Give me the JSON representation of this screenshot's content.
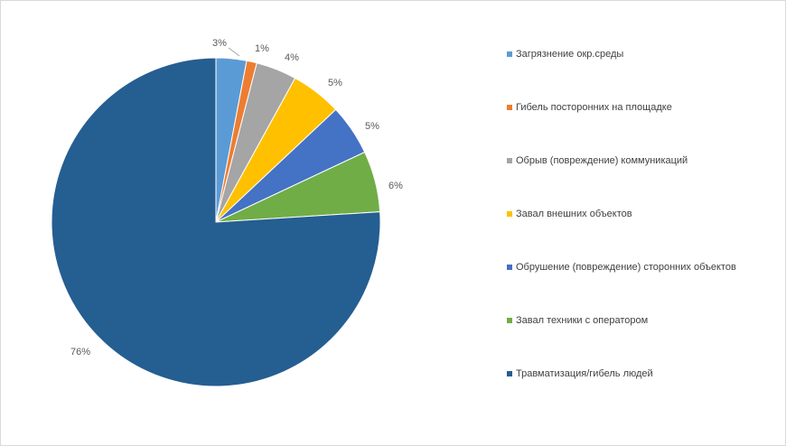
{
  "chart_data": {
    "type": "pie",
    "title": "",
    "legend_position": "right",
    "start": "top, clockwise",
    "slices": [
      {
        "label": "Загрязнение окр.среды",
        "value": 3,
        "value_label": "3%",
        "color": "#5B9BD5"
      },
      {
        "label": "Гибель посторонних на площадке",
        "value": 1,
        "value_label": "1%",
        "color": "#ED7D31"
      },
      {
        "label": "Обрыв (повреждение) коммуникаций",
        "value": 4,
        "value_label": "4%",
        "color": "#A5A5A5"
      },
      {
        "label": "Завал внешних объектов",
        "value": 5,
        "value_label": "5%",
        "color": "#FFC000"
      },
      {
        "label": "Обрушение (повреждение) сторонних объектов",
        "value": 5,
        "value_label": "5%",
        "color": "#4472C4"
      },
      {
        "label": "Завал техники с оператором",
        "value": 6,
        "value_label": "6%",
        "color": "#70AD47"
      },
      {
        "label": "Травматизация/гибель людей",
        "value": 76,
        "value_label": "76%",
        "color": "#255E91"
      }
    ]
  }
}
